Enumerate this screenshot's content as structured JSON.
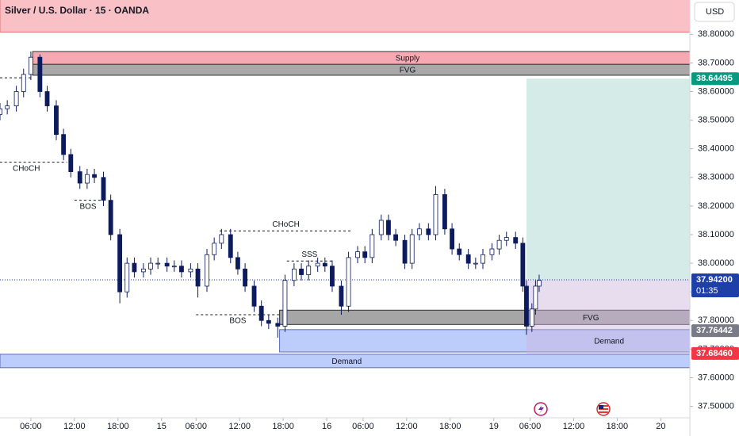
{
  "chart_data": {
    "type": "candlestick",
    "title": "Silver / U.S. Dollar · 15 · OANDA",
    "currency": "USD",
    "up_color": "#ffffff",
    "down_color": "#0d1b5e",
    "wick_color": "#0d1b5e",
    "x": [
      0,
      4,
      9,
      13,
      17,
      22,
      26,
      31,
      35,
      39,
      44,
      48,
      52,
      57,
      61,
      66,
      70,
      74,
      79,
      83,
      87,
      92,
      96,
      100,
      105,
      109,
      114,
      118,
      122,
      127,
      131,
      135,
      140,
      144,
      148,
      153,
      157,
      162,
      166,
      170,
      175,
      179,
      183,
      188,
      192,
      197,
      201,
      205,
      210,
      214,
      218,
      223,
      227,
      231,
      236,
      240,
      245,
      249,
      253,
      258,
      262,
      266,
      271,
      275,
      279,
      284,
      288,
      290,
      293,
      295,
      297
    ],
    "open": [
      38.52,
      38.54,
      38.55,
      38.6,
      38.66,
      38.72,
      38.6,
      38.55,
      38.45,
      38.38,
      38.32,
      38.28,
      38.31,
      38.3,
      38.22,
      38.1,
      37.9,
      38.0,
      37.97,
      37.98,
      38.0,
      38.0,
      37.99,
      37.99,
      37.97,
      37.98,
      37.92,
      38.03,
      38.07,
      38.1,
      38.02,
      37.98,
      37.92,
      37.85,
      37.8,
      37.79,
      37.78,
      37.94,
      37.98,
      37.96,
      37.99,
      38.0,
      37.99,
      37.92,
      37.85,
      38.02,
      38.04,
      38.02,
      38.1,
      38.15,
      38.1,
      38.08,
      38.0,
      38.1,
      38.12,
      38.1,
      38.24,
      38.12,
      38.05,
      38.03,
      38.0,
      38.0,
      38.03,
      38.05,
      38.08,
      38.09,
      38.07,
      37.92,
      37.78,
      37.84,
      37.92
    ],
    "high": [
      38.56,
      38.57,
      38.62,
      38.68,
      38.74,
      38.73,
      38.62,
      38.57,
      38.47,
      38.4,
      38.34,
      38.33,
      38.33,
      38.32,
      38.24,
      38.12,
      38.02,
      38.02,
      38.0,
      38.02,
      38.02,
      38.02,
      38.01,
      38.01,
      38.0,
      38.0,
      38.05,
      38.09,
      38.12,
      38.12,
      38.04,
      38.0,
      37.94,
      37.87,
      37.82,
      37.81,
      37.96,
      38.0,
      38.0,
      38.01,
      38.02,
      38.02,
      38.01,
      37.94,
      38.04,
      38.06,
      38.06,
      38.12,
      38.17,
      38.17,
      38.12,
      38.1,
      38.12,
      38.14,
      38.14,
      38.27,
      38.26,
      38.14,
      38.07,
      38.05,
      38.02,
      38.05,
      38.07,
      38.1,
      38.11,
      38.11,
      38.09,
      37.94,
      37.86,
      37.94,
      37.96
    ],
    "low": [
      38.5,
      38.52,
      38.53,
      38.58,
      38.64,
      38.58,
      38.53,
      38.43,
      38.36,
      38.3,
      38.26,
      38.26,
      38.28,
      38.2,
      38.08,
      37.86,
      37.88,
      37.95,
      37.95,
      37.96,
      37.98,
      37.97,
      37.97,
      37.95,
      37.95,
      37.88,
      37.9,
      38.01,
      38.05,
      38.0,
      37.96,
      37.9,
      37.83,
      37.78,
      37.77,
      37.74,
      37.76,
      37.92,
      37.94,
      37.94,
      37.97,
      37.97,
      37.9,
      37.82,
      37.83,
      38.0,
      38.0,
      38.0,
      38.08,
      38.08,
      38.06,
      37.98,
      37.98,
      38.08,
      38.08,
      38.08,
      38.1,
      38.03,
      38.01,
      37.98,
      37.98,
      37.98,
      38.01,
      38.03,
      38.06,
      38.05,
      37.9,
      37.75,
      37.76,
      37.82,
      37.9
    ],
    "close": [
      38.54,
      38.55,
      38.6,
      38.66,
      38.72,
      38.6,
      38.55,
      38.45,
      38.38,
      38.32,
      38.28,
      38.31,
      38.3,
      38.22,
      38.1,
      37.9,
      38.0,
      37.97,
      37.98,
      38.0,
      38.0,
      37.99,
      37.99,
      37.97,
      37.98,
      37.92,
      38.03,
      38.07,
      38.1,
      38.02,
      37.98,
      37.92,
      37.85,
      37.8,
      37.79,
      37.78,
      37.94,
      37.98,
      37.96,
      37.99,
      38.0,
      37.99,
      37.92,
      37.85,
      38.02,
      38.04,
      38.02,
      38.1,
      38.15,
      38.1,
      38.08,
      38.0,
      38.1,
      38.12,
      38.1,
      38.24,
      38.12,
      38.05,
      38.03,
      38.0,
      38.0,
      38.03,
      38.05,
      38.08,
      38.09,
      38.07,
      37.92,
      37.78,
      37.84,
      37.92,
      37.94
    ],
    "xlim": [
      0,
      380
    ],
    "xticks": [
      {
        "value": 17,
        "label": "06:00"
      },
      {
        "value": 41,
        "label": "12:00"
      },
      {
        "value": 65,
        "label": "18:00"
      },
      {
        "value": 89,
        "label": "15"
      },
      {
        "value": 108,
        "label": "06:00"
      },
      {
        "value": 132,
        "label": "12:00"
      },
      {
        "value": 156,
        "label": "18:00"
      },
      {
        "value": 180,
        "label": "16"
      },
      {
        "value": 200,
        "label": "06:00"
      },
      {
        "value": 224,
        "label": "12:00"
      },
      {
        "value": 248,
        "label": "18:00"
      },
      {
        "value": 272,
        "label": "19"
      },
      {
        "value": 292,
        "label": "06:00"
      },
      {
        "value": 316,
        "label": "12:00"
      },
      {
        "value": 340,
        "label": "18:00"
      },
      {
        "value": 364,
        "label": "20"
      }
    ],
    "ylim": [
      37.46,
      38.92
    ],
    "yticks": [
      {
        "value": 37.5,
        "label": "37.50000"
      },
      {
        "value": 37.6,
        "label": "37.60000"
      },
      {
        "value": 37.7,
        "label": "37.70000"
      },
      {
        "value": 37.8,
        "label": "37.80000"
      },
      {
        "value": 37.9,
        "label": "37.90000"
      },
      {
        "value": 38.0,
        "label": "38.00000"
      },
      {
        "value": 38.1,
        "label": "38.10000"
      },
      {
        "value": 38.2,
        "label": "38.20000"
      },
      {
        "value": 38.3,
        "label": "38.30000"
      },
      {
        "value": 38.4,
        "label": "38.40000"
      },
      {
        "value": 38.5,
        "label": "38.50000"
      },
      {
        "value": 38.6,
        "label": "38.60000"
      },
      {
        "value": 38.7,
        "label": "38.70000"
      },
      {
        "value": 38.8,
        "label": "38.80000"
      }
    ],
    "zones": [
      {
        "low": 38.808,
        "high": 38.95,
        "x0": 0,
        "x1": 400,
        "color": "#f9c0c6",
        "border": "#e57373"
      },
      {
        "label": "Supply",
        "low": 38.695,
        "high": 38.74,
        "x0": 18,
        "x1": 431,
        "color": "#f7a9b1",
        "border": "#333333"
      },
      {
        "label": "FVG",
        "low": 38.657,
        "high": 38.695,
        "x0": 18,
        "x1": 431,
        "color": "#a8a8a8",
        "border": "#333333"
      },
      {
        "label": "FVG",
        "low": 37.786,
        "high": 37.836,
        "x0": 154,
        "x1": 497,
        "color": "#a6a6a6",
        "border": "#333333"
      },
      {
        "label": "Demand",
        "low": 37.69,
        "high": 37.768,
        "x0": 154,
        "x1": 517,
        "color": "#bcccfb",
        "border": "#5c6bc0"
      },
      {
        "label": "Demand",
        "low": 37.635,
        "high": 37.682,
        "x0": 0,
        "x1": 382,
        "color": "#bcccfb",
        "border": "#5c6bc0"
      }
    ],
    "position": {
      "x0": 290,
      "entry": 37.942,
      "target": 38.64495,
      "stop": 37.6846,
      "profit_color": "#cfe9e4",
      "loss_color": "#cdb4dc"
    },
    "annotations": [
      {
        "price": 38.648,
        "x0": 0,
        "x1": 17
      },
      {
        "label": "CHoCH",
        "price": 38.353,
        "x0": -8,
        "x1": 37,
        "label_position": "below"
      },
      {
        "label": "BOS",
        "price": 38.22,
        "x0": 41,
        "x1": 56,
        "label_position": "below"
      },
      {
        "label": "CHoCH",
        "price": 38.113,
        "x0": 121,
        "x1": 194,
        "label_position": "above"
      },
      {
        "label": "SSS",
        "price": 38.008,
        "x0": 158,
        "x1": 183,
        "label_position": "above"
      },
      {
        "label": "BOS",
        "price": 37.82,
        "x0": 108,
        "x1": 154,
        "label_position": "below"
      }
    ],
    "price_tags": [
      {
        "value": 38.64495,
        "label": "38.64495",
        "color": "#089981"
      },
      {
        "value": 37.942,
        "label": "37.94200",
        "countdown": "01:35",
        "color": "#1e3ea8"
      },
      {
        "value": 37.76442,
        "label": "37.76442",
        "color": "#787b86"
      },
      {
        "value": 37.6846,
        "label": "37.68460",
        "color": "#f23645"
      }
    ],
    "last_price_line_color": "#1e3ea8"
  }
}
